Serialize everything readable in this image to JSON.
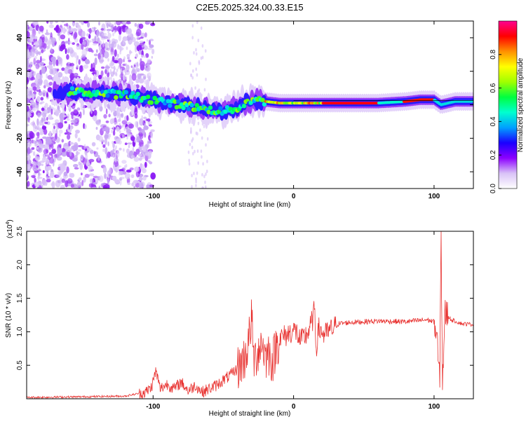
{
  "chart_data": [
    {
      "type": "heatmap",
      "title": "C2E5.2025.324.00.33.E15",
      "xlabel": "Height of straight line (km)",
      "ylabel": "Frequency (Hz)",
      "xlim": [
        -190,
        128
      ],
      "ylim": [
        -50,
        50
      ],
      "xticks": [
        -100,
        0,
        100
      ],
      "yticks": [
        -40,
        -20,
        0,
        20,
        40
      ],
      "grid": false,
      "colorbar": {
        "label": "Normalized spectral amplitude",
        "range": [
          0.0,
          1.0
        ],
        "ticks": [
          0.0,
          0.2,
          0.4,
          0.6,
          0.8
        ],
        "tick_labels": [
          "0.0",
          "0.2",
          "0.4",
          "0.6",
          "0.8"
        ],
        "colormap": [
          "#ffffff",
          "#d9c2f7",
          "#8c00ff",
          "#1a00ff",
          "#00a0ff",
          "#00ffd0",
          "#00ff40",
          "#a0ff00",
          "#ffff00",
          "#ff9000",
          "#ff0000",
          "#ff0090"
        ]
      },
      "ridge": {
        "x": [
          -160,
          -140,
          -120,
          -100,
          -80,
          -60,
          -50,
          -40,
          -30,
          -20,
          -10,
          0,
          20,
          40,
          60,
          80,
          90,
          100,
          105,
          115,
          128
        ],
        "y": [
          8,
          7,
          6,
          3,
          0,
          -3,
          -4,
          -2,
          3,
          2,
          1,
          1,
          1,
          1,
          1,
          2,
          3,
          3,
          0,
          2,
          2
        ]
      }
    },
    {
      "type": "line",
      "xlabel": "Height of straight line (km)",
      "ylabel": "SNR (10 * v/v)",
      "y_multiplier": "(x10^4)",
      "y_multiplier_base": "(x10",
      "y_multiplier_exp": "4",
      "y_multiplier_close": ")",
      "xlim": [
        -190,
        128
      ],
      "ylim": [
        0,
        2.5
      ],
      "xticks": [
        -100,
        0,
        100
      ],
      "yticks": [
        0.5,
        1.0,
        1.5,
        2.0,
        2.5
      ],
      "ytick_labels": [
        "0.5",
        "1.0",
        "1.5",
        "2.0",
        "2.5"
      ],
      "grid": false,
      "line_color": "#e8312f",
      "series": [
        {
          "x": [
            -190,
            -150,
            -120,
            -105,
            -101,
            -98,
            -95,
            -90,
            -85,
            -80,
            -75,
            -70,
            -65,
            -60,
            -55,
            -50,
            -45,
            -40,
            -35,
            -32,
            -30,
            -28,
            -25,
            -22,
            -20,
            -18,
            -15,
            -12,
            -10,
            -5,
            -2,
            0,
            2,
            5,
            10,
            14,
            15,
            16,
            18,
            22,
            28,
            32,
            40,
            60,
            80,
            95,
            100,
            102,
            104,
            105,
            106,
            108,
            112,
            120,
            128
          ],
          "y": [
            0.02,
            0.03,
            0.04,
            0.1,
            0.18,
            0.42,
            0.15,
            0.22,
            0.15,
            0.25,
            0.12,
            0.2,
            0.1,
            0.15,
            0.2,
            0.28,
            0.35,
            0.45,
            0.6,
            0.85,
            1.2,
            0.55,
            0.75,
            0.85,
            0.6,
            0.7,
            0.55,
            0.82,
            0.9,
            0.95,
            1.0,
            1.02,
            1.0,
            0.85,
            0.98,
            1.2,
            1.38,
            0.75,
            1.05,
            0.95,
            1.05,
            1.12,
            1.14,
            1.16,
            1.15,
            1.18,
            1.15,
            0.9,
            0.22,
            2.5,
            0.28,
            1.3,
            1.18,
            1.12,
            1.11
          ]
        }
      ]
    }
  ]
}
